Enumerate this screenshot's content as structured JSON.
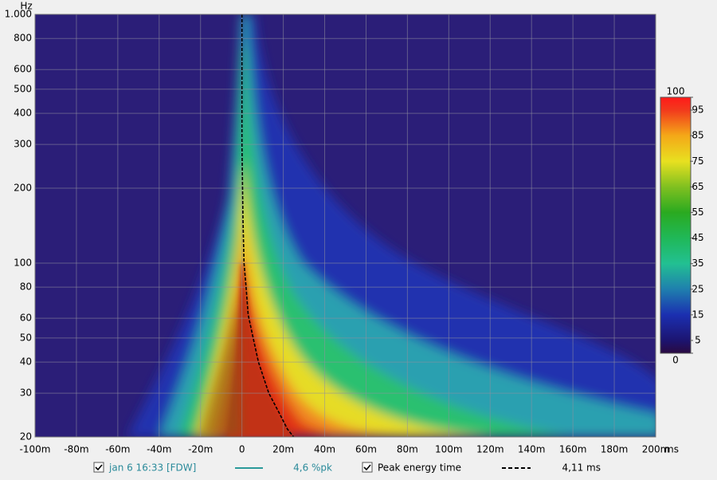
{
  "chart_data": {
    "type": "spectrogram",
    "y_label": "Hz",
    "x_unit": "ms",
    "xlim": [
      -100,
      200
    ],
    "xticks": [
      {
        "value": -100,
        "label": "-100m"
      },
      {
        "value": -80,
        "label": "-80m"
      },
      {
        "value": -60,
        "label": "-60m"
      },
      {
        "value": -40,
        "label": "-40m"
      },
      {
        "value": -20,
        "label": "-20m"
      },
      0,
      {
        "value": 20,
        "label": "20m"
      },
      {
        "value": 40,
        "label": "40m"
      },
      {
        "value": 60,
        "label": "60m"
      },
      {
        "value": 80,
        "label": "80m"
      },
      {
        "value": 100,
        "label": "100m"
      },
      {
        "value": 120,
        "label": "120m"
      },
      {
        "value": 140,
        "label": "140m"
      },
      {
        "value": 160,
        "label": "160m"
      },
      {
        "value": 180,
        "label": "180m"
      },
      {
        "value": 200,
        "label": "200m"
      }
    ],
    "ylim": [
      20,
      1000
    ],
    "log_y": true,
    "yticks": [
      20,
      30,
      40,
      50,
      60,
      80,
      100,
      200,
      300,
      400,
      500,
      600,
      800,
      {
        "value": 1000,
        "label": "1.000"
      }
    ],
    "grid": true,
    "colorbar": {
      "lim": [
        0,
        100
      ],
      "ticks": [
        0,
        5,
        15,
        25,
        35,
        45,
        55,
        65,
        75,
        85,
        95,
        100
      ]
    },
    "measurement": {
      "name": "jan 6 16:33 [FDW]",
      "color": "#2a9a9a",
      "checked": true,
      "readout": "4,6 %pk"
    },
    "series": [
      {
        "name": "Peak energy time",
        "color": "#000000",
        "dashed": true,
        "checked": true,
        "readout": "4,11 ms",
        "x": [
          0,
          0,
          0.5,
          1,
          2,
          3,
          5,
          8,
          13,
          18,
          22,
          25
        ],
        "values": [
          1000,
          300,
          150,
          100,
          80,
          62,
          52,
          40,
          30,
          25,
          21.5,
          20
        ]
      }
    ]
  }
}
